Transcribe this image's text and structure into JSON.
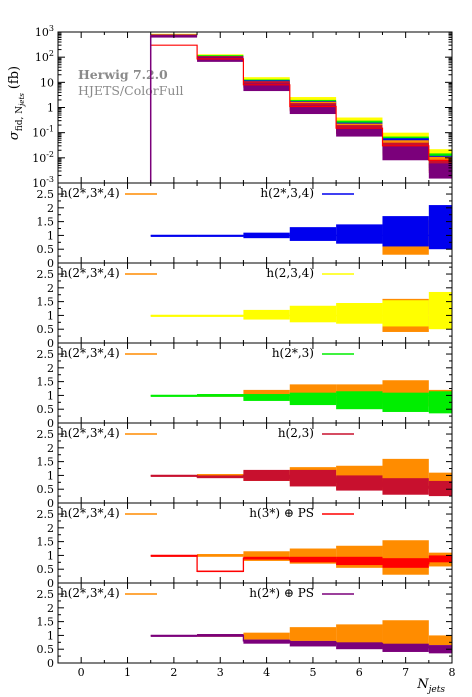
{
  "chart_data": {
    "type": "bar",
    "x_ticks": [
      "0",
      "1",
      "2",
      "3",
      "4",
      "5",
      "6",
      "7",
      "8"
    ],
    "x_label": "N",
    "x_label_sub": "jets",
    "x_range": [
      -0.5,
      8.0
    ],
    "bins": [
      {
        "lo": 1.5,
        "hi": 2.5
      },
      {
        "lo": 2.5,
        "hi": 3.5
      },
      {
        "lo": 3.5,
        "hi": 4.5
      },
      {
        "lo": 4.5,
        "hi": 5.5
      },
      {
        "lo": 5.5,
        "hi": 6.5
      },
      {
        "lo": 6.5,
        "hi": 7.5
      },
      {
        "lo": 7.5,
        "hi": 8.0
      }
    ],
    "main": {
      "ylabel_base": "σ",
      "ylabel_sub": "fid, N",
      "ylabel_subsub": "jets",
      "ylabel_unit": "(fb)",
      "yscale": "log",
      "ylim": [
        0.001,
        1000
      ],
      "y_ticks": [
        "10-3",
        "10-2",
        "10-1",
        "1",
        "10",
        "102",
        "103"
      ],
      "annotation_lines": [
        "Herwig 7.2.0",
        "HJETS/ColorFull"
      ],
      "series": [
        {
          "color": "#ffff00",
          "lo": [
            700,
            85,
            8,
            1.0,
            0.15,
            0.03,
            0.007
          ],
          "hi": [
            850,
            130,
            16,
            2.6,
            0.4,
            0.1,
            0.022
          ]
        },
        {
          "color": "#00ee00",
          "lo": [
            700,
            85,
            7.5,
            0.9,
            0.13,
            0.02,
            0.005
          ],
          "hi": [
            800,
            120,
            13,
            2.0,
            0.3,
            0.07,
            0.015
          ]
        },
        {
          "color": "#0000ee",
          "lo": [
            700,
            80,
            6.5,
            0.8,
            0.1,
            0.015,
            0.004
          ],
          "hi": [
            800,
            110,
            12,
            1.8,
            0.25,
            0.06,
            0.012
          ]
        },
        {
          "color": "#ff8c00",
          "lo": [
            650,
            75,
            6,
            0.75,
            0.09,
            0.013,
            0.003
          ],
          "hi": [
            780,
            105,
            11,
            1.7,
            0.23,
            0.05,
            0.011
          ]
        },
        {
          "color": "#c8102e",
          "lo": [
            650,
            75,
            6,
            0.7,
            0.09,
            0.012,
            0.0025
          ],
          "hi": [
            800,
            110,
            11,
            1.5,
            0.2,
            0.04,
            0.008
          ]
        },
        {
          "color": "#7b007b",
          "lo": [
            600,
            65,
            4.5,
            0.55,
            0.07,
            0.008,
            0.0015
          ],
          "hi": [
            750,
            100,
            9,
            1.2,
            0.16,
            0.03,
            0.006
          ]
        }
      ],
      "line": {
        "color": "#ff0000",
        "values": [
          300,
          85,
          8,
          1.1,
          0.15,
          0.03,
          0.008
        ]
      }
    },
    "ratio_panels": [
      {
        "reference_legend": "h(2*,3*,4)",
        "reference_color": "#ff8c00",
        "legend": "h(2*,3,4)",
        "legend_color": "#0000ee",
        "y_ticks": [
          "0",
          "0.5",
          "1",
          "1.5",
          "2",
          "2.5"
        ],
        "ylim": [
          0,
          2.9
        ],
        "ref_lo": [
          1.0,
          1.0,
          1.0,
          1.0,
          1.0,
          0.3,
          1.0
        ],
        "ref_hi": [
          1.0,
          1.0,
          1.0,
          1.0,
          1.0,
          1.55,
          1.0
        ],
        "lo": [
          1.0,
          1.0,
          0.9,
          0.8,
          0.7,
          0.6,
          0.5
        ],
        "hi": [
          1.0,
          1.0,
          1.1,
          1.3,
          1.4,
          1.7,
          2.1
        ],
        "line": [
          1.0,
          1.0,
          1.0,
          1.0,
          1.0,
          1.0,
          1.0
        ]
      },
      {
        "reference_legend": "h(2*,3*,4)",
        "reference_color": "#ff8c00",
        "legend": "h(2,3,4)",
        "legend_color": "#ffff00",
        "y_ticks": [
          "0",
          "0.5",
          "1",
          "1.5",
          "2",
          "2.5"
        ],
        "ylim": [
          0,
          2.9
        ],
        "ref_lo": [
          1.0,
          1.0,
          1.0,
          1.0,
          1.0,
          0.4,
          1.0
        ],
        "ref_hi": [
          1.0,
          1.0,
          1.0,
          1.0,
          1.0,
          1.6,
          1.0
        ],
        "lo": [
          1.0,
          1.0,
          0.85,
          0.75,
          0.7,
          0.6,
          0.5
        ],
        "hi": [
          1.0,
          1.0,
          1.2,
          1.35,
          1.45,
          1.55,
          1.85
        ],
        "line": [
          1.0,
          1.0,
          1.0,
          1.0,
          1.0,
          1.0,
          1.0
        ]
      },
      {
        "reference_legend": "h(2*,3*,4)",
        "reference_color": "#ff8c00",
        "legend": "h(2*,3)",
        "legend_color": "#00ee00",
        "y_ticks": [
          "0",
          "0.5",
          "1",
          "1.5",
          "2",
          "2.5"
        ],
        "ylim": [
          0,
          2.9
        ],
        "ref_lo": [
          1.0,
          0.95,
          0.85,
          0.75,
          0.7,
          0.6,
          0.6
        ],
        "ref_hi": [
          1.0,
          1.05,
          1.2,
          1.4,
          1.4,
          1.55,
          1.2
        ],
        "lo": [
          1.0,
          0.95,
          0.8,
          0.65,
          0.5,
          0.4,
          0.35
        ],
        "hi": [
          1.0,
          1.05,
          1.05,
          1.1,
          1.15,
          1.1,
          1.15
        ],
        "line": [
          1.0,
          1.0,
          1.0,
          1.0,
          1.0,
          1.0,
          1.0
        ]
      },
      {
        "reference_legend": "h(2*,3*,4)",
        "reference_color": "#ff8c00",
        "legend": "h(2,3)",
        "legend_color": "#c8102e",
        "y_ticks": [
          "0",
          "0.5",
          "1",
          "1.5",
          "2",
          "2.5"
        ],
        "ylim": [
          0,
          2.9
        ],
        "ref_lo": [
          1.0,
          0.95,
          0.8,
          0.7,
          0.5,
          0.5,
          0.5
        ],
        "ref_hi": [
          1.0,
          1.05,
          1.15,
          1.3,
          1.35,
          1.6,
          1.1
        ],
        "lo": [
          1.0,
          0.9,
          0.8,
          0.6,
          0.45,
          0.3,
          0.25
        ],
        "hi": [
          1.0,
          1.0,
          1.2,
          1.2,
          1.0,
          0.9,
          0.8
        ],
        "line": [
          1.0,
          0.95,
          1.0,
          0.9,
          0.75,
          0.6,
          0.55
        ]
      },
      {
        "reference_legend": "h(2*,3*,4)",
        "reference_color": "#ff8c00",
        "legend": "h(3*) ⊕ PS",
        "legend_color": "#ff0000",
        "y_ticks": [
          "0",
          "0.5",
          "1",
          "1.5",
          "2",
          "2.5"
        ],
        "ylim": [
          0,
          2.9
        ],
        "ref_lo": [
          1.0,
          0.95,
          0.8,
          0.7,
          0.55,
          0.3,
          0.6
        ],
        "ref_hi": [
          1.0,
          1.05,
          1.15,
          1.25,
          1.35,
          1.55,
          1.1
        ],
        "lo": [
          1.0,
          0.4,
          0.85,
          0.75,
          0.65,
          0.55,
          0.75
        ],
        "hi": [
          1.0,
          0.45,
          0.95,
          0.95,
          0.95,
          0.9,
          1.0
        ],
        "line": [
          1.0,
          0.42,
          0.9,
          0.85,
          0.8,
          0.7,
          0.85
        ]
      },
      {
        "reference_legend": "h(2*,3*,4)",
        "reference_color": "#ff8c00",
        "legend": "h(2*) ⊕ PS",
        "legend_color": "#7b007b",
        "y_ticks": [
          "0",
          "0.5",
          "1",
          "1.5",
          "2",
          "2.5"
        ],
        "ylim": [
          0,
          2.9
        ],
        "ref_lo": [
          1.0,
          0.95,
          0.85,
          0.8,
          0.7,
          0.6,
          0.65
        ],
        "ref_hi": [
          1.0,
          1.05,
          1.1,
          1.3,
          1.4,
          1.55,
          1.0
        ],
        "lo": [
          1.0,
          0.95,
          0.7,
          0.6,
          0.5,
          0.4,
          0.35
        ],
        "hi": [
          1.0,
          1.05,
          0.85,
          0.8,
          0.75,
          0.7,
          0.65
        ],
        "line": [
          1.0,
          1.0,
          0.8,
          0.75,
          0.7,
          0.6,
          0.55
        ]
      }
    ]
  }
}
